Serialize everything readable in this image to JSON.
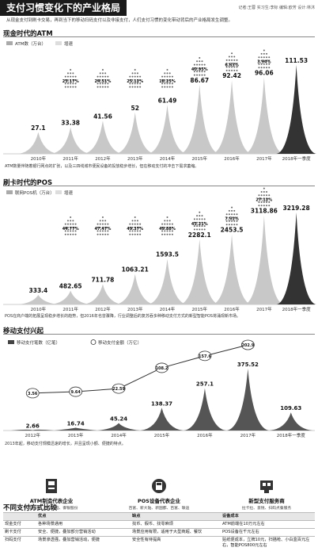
{
  "header": {
    "title": "支付习惯变化下的产业格局",
    "credits": "记者:王蓉 实习生:李标 编辑:欧芳 设计:林沐"
  },
  "intro": "从现金支付到刷卡交易，再到当下的移动扫码支付以及非接支付，人们支付习惯的变化带动背后的产业格局发生调整。",
  "atm": {
    "section": "现金时代的ATM",
    "legend_count": "ATM数（万台）",
    "legend_growth": "增速",
    "note": "ATM数量伴随着银行网点的扩张，以及三四线城市便民设备的投放稳步增长，但在移动支付的冲击下需求萎缩。"
  },
  "pos": {
    "section": "刷卡时代的POS",
    "legend_count": "联网POS机（万台）",
    "legend_growth": "增速",
    "note": "POS在商户端的拓展呈现稳步增长的趋势，但2016年也曾骤降，行业调整后的复苏吞多种移动支付方式的新型智能POS将涌现新市场。"
  },
  "mobile": {
    "section": "移动支付兴起",
    "legend_count": "移动支付笔数（亿笔）",
    "legend_amount": "移动支付金额（万亿）",
    "note": "2013年起，移动支付规模迅速的增长，并且呈现小额、便捷的特点。"
  },
  "chart_data": [
    {
      "type": "bar",
      "categories": [
        "2010年",
        "2011年",
        "2012年",
        "2013年",
        "2014年",
        "2015年",
        "2016年",
        "2017年",
        "2018年一季度"
      ],
      "series": [
        {
          "name": "ATM数（万台）",
          "values": [
            27.1,
            33.38,
            41.56,
            52,
            61.49,
            86.67,
            92.42,
            96.06,
            111.53
          ]
        },
        {
          "name": "增速",
          "values": [
            null,
            "23.17%",
            "24.51%",
            "25.12%",
            "18.25%",
            "40.95%",
            "6.63%",
            "3.94%",
            null
          ]
        }
      ]
    },
    {
      "type": "bar",
      "categories": [
        "2010年",
        "2011年",
        "2012年",
        "2013年",
        "2014年",
        "2015年",
        "2016年",
        "2017年",
        "2018年一季度"
      ],
      "series": [
        {
          "name": "联网POS机（万台）",
          "values": [
            333.4,
            482.65,
            711.78,
            1063.21,
            1593.5,
            2282.1,
            2453.5,
            3118.86,
            3219.28
          ]
        },
        {
          "name": "增速",
          "values": [
            null,
            "44.77%",
            "47.47%",
            "49.37%",
            "49.88%",
            "43.21%",
            "7.51%",
            "27.12%",
            null
          ]
        }
      ]
    },
    {
      "type": "bar",
      "categories": [
        "2012年",
        "2013年",
        "2014年",
        "2015年",
        "2016年",
        "2017年",
        "2018年一季度"
      ],
      "series": [
        {
          "name": "移动支付笔数（亿笔）",
          "values": [
            2.66,
            16.74,
            45.24,
            138.37,
            257.1,
            375.52,
            109.63
          ]
        },
        {
          "name": "移动支付金额（万亿）",
          "values": [
            3.56,
            9.64,
            22.59,
            108.2,
            157.6,
            202.9,
            null
          ]
        }
      ]
    }
  ],
  "enterprises": [
    {
      "title": "ATM制造代表企业",
      "sub": "广电运通、怡化电脑、御银股份"
    },
    {
      "title": "POS设备代表企业",
      "sub": "百富、新大陆、新国都、百富、联迪"
    },
    {
      "title": "新型支付服务商",
      "sub": "拉卡拉、意锐、扫码点餐服务"
    }
  ],
  "compare": {
    "section": "不同支付方式比较",
    "headers": [
      "",
      "优点",
      "缺点",
      "设备成本"
    ],
    "rows": [
      [
        "现金支付",
        "各种场景通用",
        "找币、假币、找零麻烦",
        "ATM前端在10万元左右"
      ],
      [
        "刷卡支付",
        "安全、便捷，叠加部分营销活动",
        "场景应用有限，适用于大型商超、餐饮",
        "POS设备在千元左右"
      ],
      [
        "扫码支付",
        "场景渗透强，叠加营销活动，便捷",
        "安全性有待提高",
        "贴纸便成本，立牌10元，扫描枪、小白盒百元左右，智能POS800元左右"
      ]
    ]
  }
}
